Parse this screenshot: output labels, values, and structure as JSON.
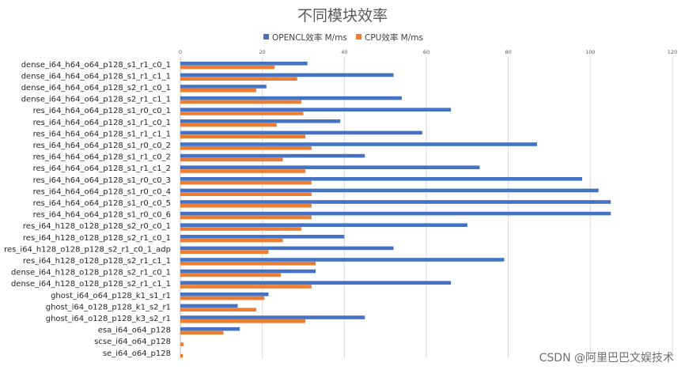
{
  "chart_data": {
    "type": "bar",
    "orientation": "horizontal",
    "title": "不同模块效率",
    "xlim": [
      0,
      120
    ],
    "xticks": [
      0,
      20,
      40,
      60,
      80,
      100,
      120
    ],
    "xaxis_position": "top",
    "grid": true,
    "legend_position": "top",
    "colors": {
      "opencl": "#4472c4",
      "cpu": "#ed7d31"
    },
    "categories": [
      "dense_i64_h64_o64_p128_s1_r1_c0_1",
      "dense_i64_h64_o64_p128_s1_r1_c1_1",
      "dense_i64_h64_o64_p128_s2_r1_c0_1",
      "dense_i64_h64_o64_p128_s2_r1_c1_1",
      "res_i64_h64_o64_p128_s1_r0_c0_1",
      "res_i64_h64_o64_p128_s1_r1_c0_1",
      "res_i64_h64_o64_p128_s1_r1_c1_1",
      "res_i64_h64_o64_p128_s1_r0_c0_2",
      "res_i64_h64_o64_p128_s1_r1_c0_2",
      "res_i64_h64_o64_p128_s1_r1_c1_2",
      "res_i64_h64_o64_p128_s1_r0_c0_3",
      "res_i64_h64_o64_p128_s1_r0_c0_4",
      "res_i64_h64_o64_p128_s1_r0_c0_5",
      "res_i64_h64_o64_p128_s1_r0_c0_6",
      "res_i64_h128_o128_p128_s2_r0_c0_1",
      "res_i64_h128_o128_p128_s2_r1_c0_1",
      "res_i64_h128_o128_p128_s2_r1_c0_1_adp",
      "res_i64_h128_o128_p128_s2_r1_c1_1",
      "dense_i64_h128_o128_p128_s2_r1_c0_1",
      "dense_i64_h128_o128_p128_s2_r1_c1_1",
      "ghost_i64_o64_p128_k1_s1_r1",
      "ghost_i64_o128_p128_k1_s2_r1",
      "ghost_i64_o128_p128_k3_s2_r1",
      "esa_i64_o64_p128",
      "scse_i64_o64_p128",
      "se_i64_o64_p128"
    ],
    "series": [
      {
        "name": "OPENCL效率 M/ms",
        "key": "opencl",
        "values": [
          31,
          52,
          21,
          54,
          66,
          39,
          59,
          87,
          45,
          73,
          98,
          102,
          105,
          105,
          70,
          40,
          52,
          79,
          33,
          66,
          21.5,
          14,
          45,
          14.5,
          0,
          0
        ]
      },
      {
        "name": "CPU效率 M/ms",
        "key": "cpu",
        "values": [
          23,
          28.5,
          18.5,
          29.5,
          30,
          23.5,
          30.5,
          32,
          25,
          30.5,
          32,
          32,
          32,
          32,
          29.5,
          25,
          21.5,
          33,
          24.5,
          32,
          20.5,
          18.5,
          30.5,
          10.5,
          0.8,
          0.6
        ]
      }
    ]
  },
  "watermark": "CSDN @阿里巴巴文娱技术"
}
